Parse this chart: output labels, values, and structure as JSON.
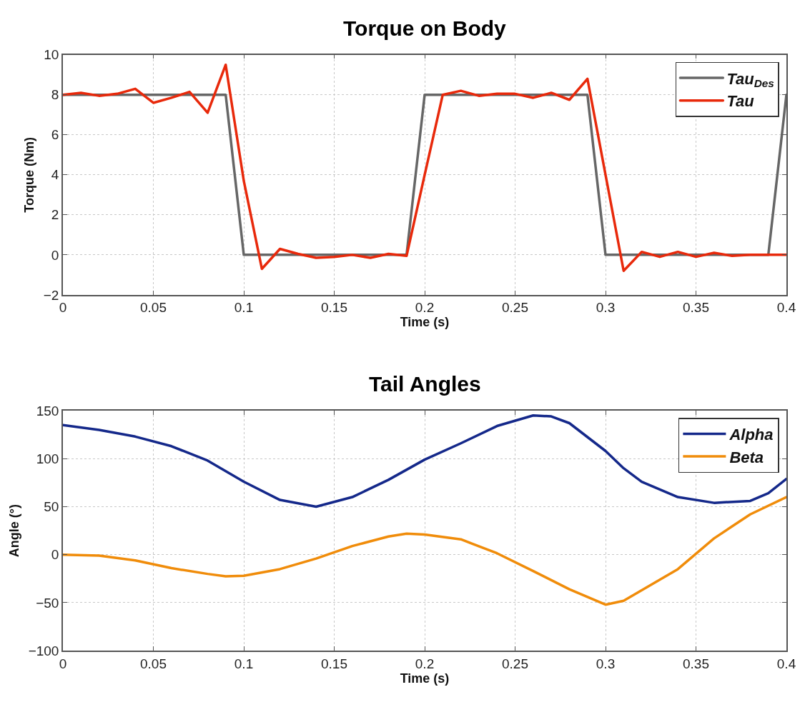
{
  "chart_data": [
    {
      "type": "line",
      "title": "Torque on Body",
      "xlabel": "Time (s)",
      "ylabel": "Torque (Nm)",
      "xlim": [
        0,
        0.4
      ],
      "xticks": [
        0,
        0.05,
        0.1,
        0.15,
        0.2,
        0.25,
        0.3,
        0.35,
        0.4
      ],
      "ylim": [
        -2,
        10
      ],
      "yticks": [
        -2,
        0,
        2,
        4,
        6,
        8,
        10
      ],
      "grid": true,
      "legend": "top right",
      "line_style": "solid",
      "series": [
        {
          "name": "Tau$_{Des}$",
          "color": "#666666",
          "x": [
            0,
            0.09,
            0.1,
            0.19,
            0.2,
            0.29,
            0.3,
            0.39,
            0.4
          ],
          "values": [
            8,
            8,
            0,
            0,
            8,
            8,
            0,
            0,
            8
          ]
        },
        {
          "name": "Tau",
          "color": "#e8290b",
          "x": [
            0,
            0.01,
            0.02,
            0.03,
            0.04,
            0.05,
            0.06,
            0.07,
            0.08,
            0.09,
            0.1,
            0.11,
            0.12,
            0.13,
            0.14,
            0.15,
            0.16,
            0.17,
            0.18,
            0.19,
            0.2,
            0.21,
            0.22,
            0.23,
            0.24,
            0.25,
            0.26,
            0.27,
            0.28,
            0.29,
            0.3,
            0.31,
            0.32,
            0.33,
            0.34,
            0.35,
            0.36,
            0.37,
            0.38,
            0.39,
            0.4
          ],
          "values": [
            8.0,
            8.1,
            7.95,
            8.05,
            8.3,
            7.6,
            7.85,
            8.15,
            7.1,
            9.5,
            3.7,
            -0.7,
            0.3,
            0.05,
            -0.15,
            -0.1,
            0.0,
            -0.15,
            0.05,
            -0.05,
            4.0,
            8.0,
            8.2,
            7.95,
            8.05,
            8.05,
            7.85,
            8.1,
            7.75,
            8.8,
            4.0,
            -0.8,
            0.15,
            -0.1,
            0.15,
            -0.1,
            0.1,
            -0.05,
            0.0,
            0.0,
            0.0
          ]
        }
      ]
    },
    {
      "type": "line",
      "title": "Tail Angles",
      "xlabel": "Time (s)",
      "ylabel": "Angle (°)",
      "xlim": [
        0,
        0.4
      ],
      "xticks": [
        0,
        0.05,
        0.1,
        0.15,
        0.2,
        0.25,
        0.3,
        0.35,
        0.4
      ],
      "ylim": [
        -100,
        150
      ],
      "yticks": [
        -100,
        -50,
        0,
        50,
        100,
        150
      ],
      "grid": true,
      "legend": "top right",
      "line_style": "solid",
      "series": [
        {
          "name": "Alpha",
          "color": "#14288a",
          "x": [
            0,
            0.02,
            0.04,
            0.06,
            0.08,
            0.1,
            0.12,
            0.14,
            0.16,
            0.18,
            0.2,
            0.22,
            0.24,
            0.26,
            0.27,
            0.28,
            0.3,
            0.31,
            0.32,
            0.34,
            0.36,
            0.38,
            0.39,
            0.4
          ],
          "values": [
            135,
            130,
            123,
            113,
            98,
            76,
            57,
            50,
            60,
            78,
            99,
            116,
            134,
            145,
            144,
            137,
            108,
            90,
            76,
            60,
            54,
            56,
            64,
            79
          ]
        },
        {
          "name": "Beta",
          "color": "#f08c0a",
          "x": [
            0,
            0.02,
            0.04,
            0.06,
            0.08,
            0.09,
            0.1,
            0.12,
            0.14,
            0.16,
            0.18,
            0.19,
            0.2,
            0.22,
            0.24,
            0.26,
            0.28,
            0.3,
            0.31,
            0.32,
            0.34,
            0.35,
            0.36,
            0.38,
            0.4
          ],
          "values": [
            0,
            -1,
            -6,
            -14,
            -20,
            -22.5,
            -22,
            -15,
            -4,
            9,
            19,
            22,
            21,
            16,
            1.5,
            -17,
            -36,
            -52,
            -48,
            -37,
            -15,
            1,
            17,
            42,
            60
          ]
        }
      ]
    }
  ]
}
